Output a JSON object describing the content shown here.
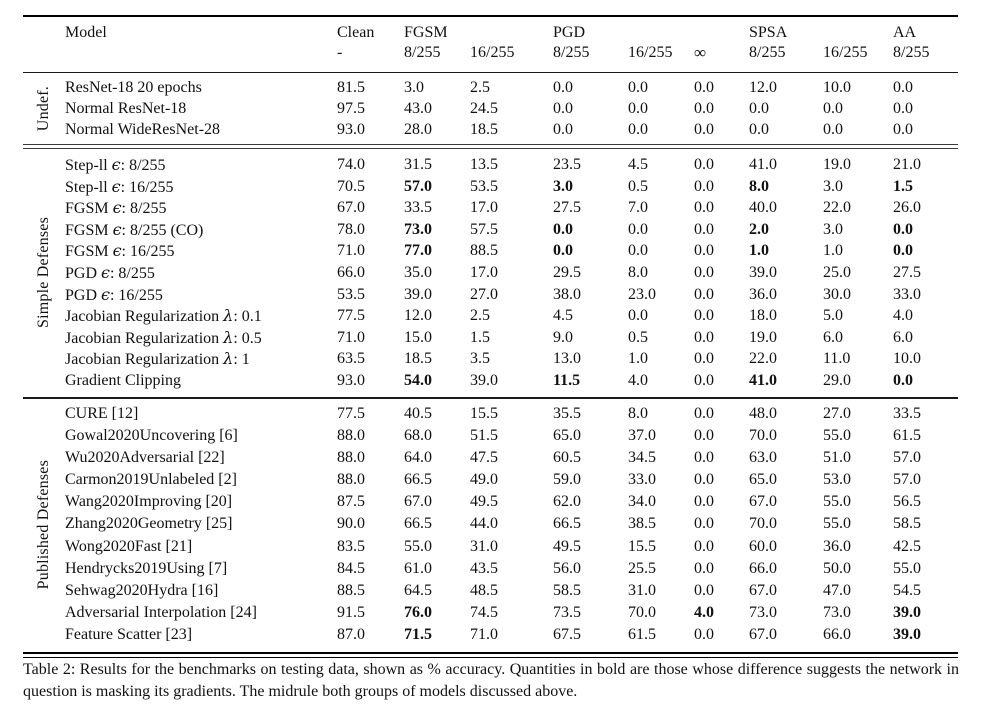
{
  "caption": "Table 2: Results for the benchmarks on testing data, shown as % accuracy. Quantities in bold are those whose difference suggests the network in question is masking its gradients. The midrule both groups of models discussed above.",
  "table": {
    "header": {
      "model_label": "Model",
      "columns": [
        {
          "group": "Clean",
          "sub": "-"
        },
        {
          "group": "FGSM",
          "sub": "8/255"
        },
        {
          "group": "",
          "sub": "16/255"
        },
        {
          "group": "PGD",
          "sub": "8/255"
        },
        {
          "group": "",
          "sub": "16/255"
        },
        {
          "group": "",
          "sub": "∞"
        },
        {
          "group": "SPSA",
          "sub": "8/255"
        },
        {
          "group": "",
          "sub": "16/255"
        },
        {
          "group": "AA",
          "sub": "8/255"
        }
      ]
    },
    "groups": [
      {
        "label": "Undef.",
        "rows": [
          {
            "model": "ResNet-18 20 epochs",
            "values": [
              "81.5",
              "3.0",
              "2.5",
              "0.0",
              "0.0",
              "0.0",
              "12.0",
              "10.0",
              "0.0"
            ],
            "bold": []
          },
          {
            "model": "Normal ResNet-18",
            "values": [
              "97.5",
              "43.0",
              "24.5",
              "0.0",
              "0.0",
              "0.0",
              "0.0",
              "0.0",
              "0.0"
            ],
            "bold": []
          },
          {
            "model": "Normal WideResNet-28",
            "values": [
              "93.0",
              "28.0",
              "18.5",
              "0.0",
              "0.0",
              "0.0",
              "0.0",
              "0.0",
              "0.0"
            ],
            "bold": []
          }
        ]
      },
      {
        "label": "Simple Defenses",
        "rows": [
          {
            "model": "Step-ll ϵ: 8/255",
            "values": [
              "74.0",
              "31.5",
              "13.5",
              "23.5",
              "4.5",
              "0.0",
              "41.0",
              "19.0",
              "21.0"
            ],
            "bold": []
          },
          {
            "model": "Step-ll ϵ: 16/255",
            "values": [
              "70.5",
              "57.0",
              "53.5",
              "3.0",
              "0.5",
              "0.0",
              "8.0",
              "3.0",
              "1.5"
            ],
            "bold": [
              1,
              3,
              6,
              8
            ]
          },
          {
            "model": "FGSM ϵ: 8/255",
            "values": [
              "67.0",
              "33.5",
              "17.0",
              "27.5",
              "7.0",
              "0.0",
              "40.0",
              "22.0",
              "26.0"
            ],
            "bold": []
          },
          {
            "model": "FGSM ϵ: 8/255 (CO)",
            "values": [
              "78.0",
              "73.0",
              "57.5",
              "0.0",
              "0.0",
              "0.0",
              "2.0",
              "3.0",
              "0.0"
            ],
            "bold": [
              1,
              3,
              6,
              8
            ]
          },
          {
            "model": "FGSM ϵ: 16/255",
            "values": [
              "71.0",
              "77.0",
              "88.5",
              "0.0",
              "0.0",
              "0.0",
              "1.0",
              "1.0",
              "0.0"
            ],
            "bold": [
              1,
              3,
              6,
              8
            ]
          },
          {
            "model": "PGD ϵ: 8/255",
            "values": [
              "66.0",
              "35.0",
              "17.0",
              "29.5",
              "8.0",
              "0.0",
              "39.0",
              "25.0",
              "27.5"
            ],
            "bold": []
          },
          {
            "model": "PGD ϵ: 16/255",
            "values": [
              "53.5",
              "39.0",
              "27.0",
              "38.0",
              "23.0",
              "0.0",
              "36.0",
              "30.0",
              "33.0"
            ],
            "bold": []
          },
          {
            "model": "Jacobian Regularization λ: 0.1",
            "values": [
              "77.5",
              "12.0",
              "2.5",
              "4.5",
              "0.0",
              "0.0",
              "18.0",
              "5.0",
              "4.0"
            ],
            "bold": []
          },
          {
            "model": "Jacobian Regularization λ: 0.5",
            "values": [
              "71.0",
              "15.0",
              "1.5",
              "9.0",
              "0.5",
              "0.0",
              "19.0",
              "6.0",
              "6.0"
            ],
            "bold": []
          },
          {
            "model": "Jacobian Regularization λ: 1",
            "values": [
              "63.5",
              "18.5",
              "3.5",
              "13.0",
              "1.0",
              "0.0",
              "22.0",
              "11.0",
              "10.0"
            ],
            "bold": []
          },
          {
            "model": "Gradient Clipping",
            "values": [
              "93.0",
              "54.0",
              "39.0",
              "11.5",
              "4.0",
              "0.0",
              "41.0",
              "29.0",
              "0.0"
            ],
            "bold": [
              1,
              3,
              6,
              8
            ]
          }
        ]
      },
      {
        "label": "Published Defenses",
        "rows": [
          {
            "model": "CURE [12]",
            "values": [
              "77.5",
              "40.5",
              "15.5",
              "35.5",
              "8.0",
              "0.0",
              "48.0",
              "27.0",
              "33.5"
            ],
            "bold": []
          },
          {
            "model": "Gowal2020Uncovering [6]",
            "values": [
              "88.0",
              "68.0",
              "51.5",
              "65.0",
              "37.0",
              "0.0",
              "70.0",
              "55.0",
              "61.5"
            ],
            "bold": []
          },
          {
            "model": "Wu2020Adversarial [22]",
            "values": [
              "88.0",
              "64.0",
              "47.5",
              "60.5",
              "34.5",
              "0.0",
              "63.0",
              "51.0",
              "57.0"
            ],
            "bold": []
          },
          {
            "model": "Carmon2019Unlabeled [2]",
            "values": [
              "88.0",
              "66.5",
              "49.0",
              "59.0",
              "33.0",
              "0.0",
              "65.0",
              "53.0",
              "57.0"
            ],
            "bold": []
          },
          {
            "model": "Wang2020Improving [20]",
            "values": [
              "87.5",
              "67.0",
              "49.5",
              "62.0",
              "34.0",
              "0.0",
              "67.0",
              "55.0",
              "56.5"
            ],
            "bold": []
          },
          {
            "model": "Zhang2020Geometry [25]",
            "values": [
              "90.0",
              "66.5",
              "44.0",
              "66.5",
              "38.5",
              "0.0",
              "70.0",
              "55.0",
              "58.5"
            ],
            "bold": []
          },
          {
            "model": "Wong2020Fast [21]",
            "values": [
              "83.5",
              "55.0",
              "31.0",
              "49.5",
              "15.5",
              "0.0",
              "60.0",
              "36.0",
              "42.5"
            ],
            "bold": []
          },
          {
            "model": "Hendrycks2019Using [7]",
            "values": [
              "84.5",
              "61.0",
              "43.5",
              "56.0",
              "25.5",
              "0.0",
              "66.0",
              "50.0",
              "55.0"
            ],
            "bold": []
          },
          {
            "model": "Sehwag2020Hydra [16]",
            "values": [
              "88.5",
              "64.5",
              "48.5",
              "58.5",
              "31.0",
              "0.0",
              "67.0",
              "47.0",
              "54.5"
            ],
            "bold": []
          },
          {
            "model": "Adversarial Interpolation [24]",
            "values": [
              "91.5",
              "76.0",
              "74.5",
              "73.5",
              "70.0",
              "4.0",
              "73.0",
              "73.0",
              "39.0"
            ],
            "bold": [
              1,
              5,
              8
            ]
          },
          {
            "model": "Feature Scatter [23]",
            "values": [
              "87.0",
              "71.5",
              "71.0",
              "67.5",
              "61.5",
              "0.0",
              "67.0",
              "66.0",
              "39.0"
            ],
            "bold": [
              1,
              8
            ]
          }
        ]
      }
    ]
  }
}
